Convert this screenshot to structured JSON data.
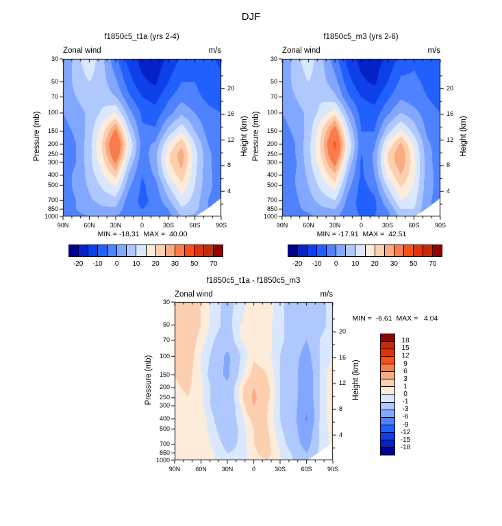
{
  "title": "DJF",
  "palette": [
    "#000090",
    "#0522C6",
    "#0D40E8",
    "#2160FD",
    "#4E82FE",
    "#82A7FE",
    "#AFC9FE",
    "#DAE8FE",
    "#FDECDA",
    "#FCCFB1",
    "#FBAB80",
    "#FA7B4B",
    "#FB4F17",
    "#E2320B",
    "#C22B08",
    "#8E0400"
  ],
  "chart_data": [
    {
      "type": "contour",
      "title": "f1850c5_t1a (yrs 2-4)",
      "field_label": "Zonal wind",
      "units": "m/s",
      "min_max": "MIN = -18.31  MAX =  40.00",
      "ylabel_left": "Pressure (mb)",
      "ylabel_right": "Height (km)",
      "x_tick_labels": [
        "90N",
        "60N",
        "30N",
        "0",
        "30S",
        "60S",
        "90S"
      ],
      "x_tick_lats": [
        90,
        60,
        30,
        0,
        -30,
        -60,
        -90
      ],
      "pressure_ticks": [
        30,
        50,
        70,
        100,
        150,
        200,
        250,
        300,
        400,
        500,
        700,
        850,
        1000
      ],
      "height_ticks": [
        20,
        16,
        12,
        8,
        4
      ],
      "height_minor_ticks": [
        22,
        18,
        14,
        10,
        6,
        2
      ],
      "levels": [
        -20,
        -15,
        -10,
        -5,
        0,
        5,
        10,
        15,
        20,
        25,
        30,
        40,
        50,
        60,
        70
      ],
      "colorbar_labels": [
        "-20",
        "-10",
        "0",
        "10",
        "20",
        "30",
        "50",
        "70"
      ],
      "colorbar_label_boundaries": [
        1,
        3,
        5,
        7,
        9,
        11,
        13,
        15
      ],
      "lats": [
        90,
        75,
        60,
        45,
        30,
        15,
        0,
        -15,
        -30,
        -45,
        -60,
        -75,
        -90
      ],
      "plevs": [
        30,
        50,
        70,
        100,
        150,
        200,
        250,
        300,
        400,
        500,
        700,
        850,
        1000
      ],
      "values": [
        [
          -1,
          8,
          14,
          6,
          -4,
          -12,
          -17,
          -18,
          -14,
          -9,
          -7,
          -9,
          -11
        ],
        [
          1,
          7,
          10,
          7,
          1,
          -8,
          -14,
          -16,
          -10,
          -5,
          -5,
          -7,
          -9
        ],
        [
          1,
          5,
          8,
          8,
          5,
          -4,
          -10,
          -12,
          -6,
          -2,
          -4,
          -6,
          -7
        ],
        [
          0,
          3,
          6,
          11,
          15,
          2,
          -6,
          -8,
          -2,
          4,
          0,
          -4,
          -5
        ],
        [
          -2,
          1,
          7,
          18,
          32,
          10,
          -4,
          -4,
          7,
          14,
          5,
          -2,
          -4
        ],
        [
          -3,
          0,
          8,
          21,
          40,
          15,
          -2,
          1,
          15,
          24,
          10,
          0,
          -3
        ],
        [
          -3,
          0,
          8,
          20,
          37,
          13,
          -3,
          3,
          19,
          28,
          12,
          1,
          -3
        ],
        [
          -3,
          0,
          8,
          18,
          31,
          9,
          -4,
          3,
          19,
          27,
          12,
          1,
          -3
        ],
        [
          -2,
          1,
          7,
          14,
          22,
          4,
          -5,
          1,
          15,
          23,
          11,
          1,
          -2
        ],
        [
          -2,
          1,
          6,
          11,
          16,
          1,
          -6,
          -2,
          10,
          19,
          10,
          1,
          -2
        ],
        [
          -2,
          0,
          4,
          7,
          8,
          -3,
          -6,
          -4,
          4,
          13,
          8,
          0,
          -2
        ],
        [
          -1,
          0,
          2,
          4,
          4,
          -4,
          -5,
          -4,
          0,
          9,
          7,
          0,
          -2
        ],
        [
          -1,
          -1,
          0,
          1,
          0,
          -4,
          -4,
          -3,
          -2,
          5,
          4,
          0,
          -2
        ]
      ]
    },
    {
      "type": "contour",
      "title": "f1850c5_m3 (yrs 2-6)",
      "field_label": "Zonal wind",
      "units": "m/s",
      "min_max": "MIN = -17.91  MAX =  42.51",
      "ylabel_left": "Pressure (mb)",
      "ylabel_right": "Height (km)",
      "x_tick_labels": [
        "90N",
        "60N",
        "30N",
        "0",
        "30S",
        "60S",
        "90S"
      ],
      "x_tick_lats": [
        90,
        60,
        30,
        0,
        -30,
        -60,
        -90
      ],
      "pressure_ticks": [
        30,
        50,
        70,
        100,
        150,
        200,
        250,
        300,
        400,
        500,
        700,
        850,
        1000
      ],
      "height_ticks": [
        20,
        16,
        12,
        8,
        4
      ],
      "height_minor_ticks": [
        22,
        18,
        14,
        10,
        6,
        2
      ],
      "levels": [
        -20,
        -15,
        -10,
        -5,
        0,
        5,
        10,
        15,
        20,
        25,
        30,
        40,
        50,
        60,
        70
      ],
      "colorbar_labels": [
        "-20",
        "-10",
        "0",
        "10",
        "20",
        "30",
        "50",
        "70"
      ],
      "colorbar_label_boundaries": [
        1,
        3,
        5,
        7,
        9,
        11,
        13,
        15
      ],
      "lats": [
        90,
        75,
        60,
        45,
        30,
        15,
        0,
        -15,
        -30,
        -45,
        -60,
        -75,
        -90
      ],
      "plevs": [
        30,
        50,
        70,
        100,
        150,
        200,
        250,
        300,
        400,
        500,
        700,
        850,
        1000
      ],
      "values": [
        [
          -1,
          8,
          13,
          6,
          -3,
          -12,
          -17,
          -17.5,
          -14,
          -8,
          -6,
          -8,
          -10
        ],
        [
          1,
          7,
          10,
          7,
          2,
          -8,
          -14,
          -16,
          -10,
          -4,
          -4,
          -6,
          -8
        ],
        [
          1,
          5,
          8,
          9,
          6,
          -4,
          -10,
          -12,
          -6,
          -1,
          -3,
          -5,
          -7
        ],
        [
          0,
          3,
          6,
          12,
          18,
          3,
          -7,
          -8,
          -1,
          5,
          2,
          -3,
          -5
        ],
        [
          -2,
          1,
          7,
          20,
          35,
          11,
          -5,
          -5,
          8,
          16,
          8,
          -1,
          -4
        ],
        [
          -3,
          0,
          8,
          22,
          42,
          15,
          -4,
          -1,
          16,
          26,
          14,
          1,
          -3
        ],
        [
          -3,
          0,
          8,
          21,
          39,
          13,
          -5,
          1,
          20,
          30,
          16,
          2,
          -3
        ],
        [
          -3,
          -1,
          8,
          19,
          33,
          9,
          -6,
          1,
          20,
          29,
          17,
          2,
          -3
        ],
        [
          -2,
          0,
          6,
          15,
          24,
          5,
          -6,
          0,
          16,
          25,
          16,
          2,
          -2
        ],
        [
          -2,
          0,
          5,
          12,
          18,
          2,
          -7,
          -3,
          11,
          21,
          15,
          2,
          -2
        ],
        [
          -2,
          -1,
          3,
          7,
          10,
          -2,
          -7,
          -6,
          4,
          15,
          12,
          1,
          -2
        ],
        [
          -1,
          -1,
          1,
          4,
          5,
          -3,
          -6,
          -6,
          0,
          10,
          10,
          1,
          -2
        ],
        [
          -1,
          -1,
          -1,
          1,
          1,
          -4,
          -5,
          -5,
          -2,
          6,
          6,
          1,
          -2
        ]
      ]
    },
    {
      "type": "contour",
      "title": "f1850c5_t1a - f1850c5_m3",
      "field_label": "Zonal wind",
      "units": "m/s",
      "min_max": "MIN =  -6.61  MAX =   4.04",
      "ylabel_left": "Pressure (mb)",
      "ylabel_right": "Height (km)",
      "x_tick_labels": [
        "90N",
        "60N",
        "30N",
        "0",
        "30S",
        "60S",
        "90S"
      ],
      "x_tick_lats": [
        90,
        60,
        30,
        0,
        -30,
        -60,
        -90
      ],
      "pressure_ticks": [
        30,
        50,
        70,
        100,
        150,
        200,
        250,
        300,
        400,
        500,
        700,
        850,
        1000
      ],
      "height_ticks": [
        20,
        16,
        12,
        8,
        4
      ],
      "height_minor_ticks": [
        22,
        18,
        14,
        10,
        6,
        2
      ],
      "levels": [
        -18,
        -15,
        -12,
        -9,
        -6,
        -3,
        -1,
        0,
        1,
        3,
        6,
        9,
        12,
        15,
        18
      ],
      "colorbar_labels": [
        "18",
        "15",
        "12",
        "9",
        "6",
        "3",
        "1",
        "0",
        "-1",
        "-3",
        "-6",
        "-9",
        "-12",
        "-15",
        "-18"
      ],
      "colorbar_label_boundaries": [
        1,
        2,
        3,
        4,
        5,
        6,
        7,
        8,
        9,
        10,
        11,
        12,
        13,
        14,
        15
      ],
      "lats": [
        90,
        75,
        60,
        45,
        30,
        15,
        0,
        -15,
        -30,
        -45,
        -60,
        -75,
        -90
      ],
      "plevs": [
        30,
        50,
        70,
        100,
        150,
        200,
        250,
        300,
        400,
        500,
        700,
        850,
        1000
      ],
      "values": [
        [
          1.5,
          2,
          1,
          -0.5,
          -1.5,
          -0.5,
          0.8,
          0.8,
          -0.8,
          -1.5,
          -2.5,
          -1.5,
          -0.5
        ],
        [
          1.5,
          2,
          1,
          -0.5,
          -1.5,
          0,
          0.8,
          0.5,
          -0.8,
          -1.5,
          -2.5,
          -1.5,
          -0.5
        ],
        [
          1.5,
          2,
          0.5,
          -1,
          -2,
          0,
          0.8,
          0.5,
          -0.8,
          -1.5,
          -3,
          -1,
          0
        ],
        [
          1.2,
          1.8,
          0,
          -1.5,
          -3.5,
          -1,
          0.8,
          0.5,
          -1,
          -2,
          -4,
          -1,
          0
        ],
        [
          1,
          1.5,
          0,
          -2,
          -3.5,
          -0.5,
          1.5,
          1,
          -1,
          -2,
          -5,
          -1,
          0.8
        ],
        [
          0.8,
          1.2,
          0.3,
          -1.5,
          -2.5,
          0.5,
          3,
          1.5,
          -1,
          -2,
          -5,
          -1,
          0.8
        ],
        [
          0.5,
          1,
          0.3,
          -1.5,
          -2.5,
          0.5,
          3.5,
          1.5,
          -1,
          -2,
          -5,
          -1,
          0.8
        ],
        [
          0.5,
          1,
          0.3,
          -1.5,
          -2.5,
          0,
          3,
          1.2,
          -1,
          -2,
          -5.5,
          -1,
          0.8
        ],
        [
          0.3,
          1,
          0.8,
          -1,
          -2,
          -0.5,
          1.5,
          1,
          -1,
          -2,
          -6.3,
          -1,
          0.8
        ],
        [
          0.3,
          1,
          0.8,
          -0.8,
          -2,
          -0.8,
          1,
          1.2,
          -0.8,
          -2,
          -5,
          -0.8,
          0.5
        ],
        [
          0.3,
          0.8,
          0.8,
          -0.3,
          -1.5,
          -0.8,
          1,
          1.5,
          -0.3,
          -1.8,
          -4,
          -0.8,
          0.3
        ],
        [
          0.3,
          0.8,
          0.8,
          0,
          -1,
          -0.8,
          0.8,
          1.5,
          0,
          -1.2,
          -3,
          -0.8,
          0.3
        ],
        [
          0.2,
          0.5,
          0.5,
          0,
          -0.8,
          -0.5,
          0.5,
          1,
          0,
          -1,
          -2,
          -0.5,
          0.2
        ]
      ]
    }
  ]
}
